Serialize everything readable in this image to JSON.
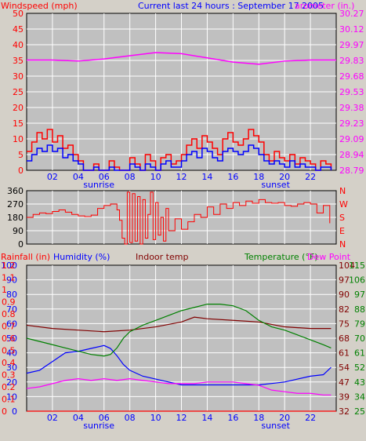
{
  "header": {
    "windspeed_label": "Windspeed (mph)",
    "title": "Current last 24 hours : September 17 2005",
    "barometer_label": "arometer (in.)"
  },
  "panel3_labels": {
    "rainfall": "Rainfall (in)",
    "humidity": "Humidity (%)",
    "indoor": "Indoor temp",
    "temperature": "Temperature (°F)",
    "dewpoint": "Dew Point"
  },
  "colors": {
    "bg": "#d4d0c8",
    "plot": "#c0c0c0",
    "grid": "#ffffff",
    "wind_gust": "#ff0000",
    "wind_avg": "#0000ff",
    "barometer": "#ff00ff",
    "direction": "#ff0000",
    "humidity": "#0000ff",
    "indoor": "#800000",
    "temperature": "#008000",
    "dewpoint": "#ff00ff",
    "rain": "#ff0000"
  },
  "chart_data": [
    {
      "type": "line",
      "id": "wind-barometer",
      "x_ticks": [
        "02",
        "04",
        "06",
        "08",
        "10",
        "12",
        "14",
        "16",
        "18",
        "20",
        "22"
      ],
      "x_markers": {
        "sunrise": "sunrise",
        "sunset": "sunset"
      },
      "xlim": [
        0,
        24
      ],
      "yleft": {
        "label": "Windspeed (mph)",
        "ticks": [
          0,
          5,
          10,
          15,
          20,
          25,
          30,
          35,
          40,
          45,
          50
        ],
        "lim": [
          0,
          50
        ]
      },
      "yright": {
        "label": "arometer (in.)",
        "ticks": [
          "28.79",
          "28.94",
          "29.09",
          "29.23",
          "29.38",
          "29.53",
          "29.68",
          "29.83",
          "29.97",
          "30.12",
          "30.27"
        ],
        "lim": [
          28.79,
          30.27
        ]
      },
      "series": [
        {
          "name": "Windspeed (mph)",
          "kind": "wind-gust",
          "x": [
            0.0,
            0.4,
            0.8,
            1.2,
            1.6,
            2.0,
            2.4,
            2.8,
            3.2,
            3.6,
            4.0,
            4.4,
            4.8,
            5.2,
            5.6,
            6.0,
            6.4,
            6.8,
            7.2,
            7.6,
            8.0,
            8.4,
            8.8,
            9.2,
            9.6,
            10.0,
            10.4,
            10.8,
            11.2,
            11.6,
            12.0,
            12.4,
            12.8,
            13.2,
            13.6,
            14.0,
            14.4,
            14.8,
            15.2,
            15.6,
            16.0,
            16.4,
            16.8,
            17.2,
            17.6,
            18.0,
            18.4,
            18.8,
            19.2,
            19.6,
            20.0,
            20.4,
            20.8,
            21.2,
            21.6,
            22.0,
            22.4,
            22.8,
            23.2,
            23.6
          ],
          "y": [
            6,
            9,
            12,
            10,
            13,
            9,
            11,
            7,
            8,
            5,
            3,
            0,
            0,
            2,
            0,
            0,
            3,
            1,
            0,
            0,
            4,
            2,
            0,
            5,
            3,
            0,
            4,
            5,
            2,
            3,
            5,
            8,
            10,
            7,
            11,
            9,
            7,
            5,
            10,
            12,
            9,
            8,
            10,
            13,
            11,
            9,
            5,
            3,
            6,
            4,
            3,
            5,
            2,
            4,
            3,
            2,
            0,
            3,
            2,
            0
          ]
        },
        {
          "name": "Windspeed avg",
          "kind": "wind-avg",
          "x": [
            0.0,
            0.4,
            0.8,
            1.2,
            1.6,
            2.0,
            2.4,
            2.8,
            3.2,
            3.6,
            4.0,
            4.4,
            4.8,
            5.2,
            5.6,
            6.0,
            6.4,
            6.8,
            7.2,
            7.6,
            8.0,
            8.4,
            8.8,
            9.2,
            9.6,
            10.0,
            10.4,
            10.8,
            11.2,
            11.6,
            12.0,
            12.4,
            12.8,
            13.2,
            13.6,
            14.0,
            14.4,
            14.8,
            15.2,
            15.6,
            16.0,
            16.4,
            16.8,
            17.2,
            17.6,
            18.0,
            18.4,
            18.8,
            19.2,
            19.6,
            20.0,
            20.4,
            20.8,
            21.2,
            21.6,
            22.0,
            22.4,
            22.8,
            23.2,
            23.6
          ],
          "y": [
            3,
            5,
            7,
            6,
            8,
            6,
            7,
            4,
            5,
            3,
            2,
            0,
            0,
            1,
            0,
            0,
            1,
            0,
            0,
            0,
            2,
            1,
            0,
            2,
            1,
            0,
            2,
            3,
            1,
            1,
            3,
            5,
            6,
            4,
            7,
            6,
            4,
            3,
            6,
            7,
            6,
            5,
            6,
            8,
            7,
            5,
            3,
            2,
            3,
            2,
            1,
            3,
            1,
            2,
            1,
            1,
            0,
            1,
            1,
            0
          ]
        },
        {
          "name": "arometer (in.)",
          "kind": "barometer",
          "axis": "right",
          "x": [
            0,
            2,
            4,
            6,
            8,
            10,
            12,
            14,
            16,
            18,
            20,
            22,
            24
          ],
          "y": [
            29.83,
            29.83,
            29.82,
            29.84,
            29.87,
            29.9,
            29.89,
            29.85,
            29.81,
            29.79,
            29.82,
            29.83,
            29.83
          ]
        }
      ]
    },
    {
      "type": "line",
      "id": "wind-direction",
      "x_ticks": [],
      "xlim": [
        0,
        24
      ],
      "yleft": {
        "ticks": [
          0,
          90,
          180,
          270,
          360
        ],
        "lim": [
          0,
          360
        ]
      },
      "yright": {
        "ticks": [
          "N",
          "E",
          "S",
          "W",
          "N"
        ]
      },
      "series": [
        {
          "name": "Wind direction",
          "kind": "direction",
          "x": [
            0.0,
            0.5,
            1.0,
            1.5,
            2.0,
            2.5,
            3.0,
            3.5,
            4.0,
            4.5,
            5.0,
            5.5,
            6.0,
            6.5,
            7.0,
            7.2,
            7.4,
            7.6,
            7.8,
            8.0,
            8.2,
            8.4,
            8.6,
            8.8,
            9.0,
            9.2,
            9.4,
            9.6,
            9.8,
            10.0,
            10.2,
            10.4,
            10.6,
            10.8,
            11.0,
            11.5,
            12.0,
            12.5,
            13.0,
            13.5,
            14.0,
            14.5,
            15.0,
            15.5,
            16.0,
            16.5,
            17.0,
            17.5,
            18.0,
            18.5,
            19.0,
            19.5,
            20.0,
            20.5,
            21.0,
            21.5,
            22.0,
            22.5,
            23.0,
            23.5
          ],
          "y": [
            180,
            200,
            210,
            205,
            220,
            230,
            215,
            200,
            190,
            185,
            195,
            240,
            260,
            270,
            230,
            160,
            40,
            0,
            350,
            10,
            340,
            20,
            320,
            0,
            300,
            40,
            200,
            350,
            30,
            280,
            60,
            180,
            20,
            240,
            90,
            170,
            100,
            150,
            200,
            180,
            250,
            200,
            270,
            240,
            280,
            260,
            290,
            275,
            300,
            280,
            275,
            280,
            260,
            255,
            270,
            280,
            270,
            210,
            260,
            140
          ]
        }
      ]
    },
    {
      "type": "line",
      "id": "temp-humidity",
      "x_ticks": [
        "02",
        "04",
        "06",
        "08",
        "10",
        "12",
        "14",
        "16",
        "18",
        "20",
        "22"
      ],
      "x_markers": {
        "sunrise": "sunrise",
        "sunset": "sunset"
      },
      "xlim": [
        0,
        24
      ],
      "axes": {
        "humidity": {
          "label": "Humidity (%)",
          "ticks": [
            0,
            10,
            20,
            30,
            40,
            50,
            60,
            70,
            80,
            90,
            100
          ],
          "lim": [
            0,
            100
          ]
        },
        "rainfall": {
          "label": "Rainfall (in)",
          "ticks": [
            "0",
            "0.1",
            "0.2",
            "0.3",
            "0.4",
            "0.5",
            "0.6",
            "0.7",
            "0.8",
            "0.9",
            "1",
            "1.1",
            "1.2"
          ],
          "lim": [
            0,
            1.2
          ]
        },
        "temp_a": {
          "ticks": [
            25,
            34,
            43,
            52,
            61,
            70,
            79,
            88,
            97,
            106,
            115
          ],
          "lim": [
            25,
            115
          ]
        },
        "temp_b": {
          "ticks": [
            32,
            39,
            47,
            54,
            61,
            68,
            75,
            82,
            90,
            97,
            104
          ],
          "lim": [
            32,
            104
          ]
        }
      },
      "series": [
        {
          "name": "Humidity (%)",
          "kind": "humidity",
          "x": [
            0,
            1,
            2,
            3,
            4,
            5,
            6,
            6.5,
            7,
            7.5,
            8,
            9,
            10,
            11,
            12,
            13,
            14,
            15,
            16,
            17,
            18,
            19,
            20,
            21,
            22,
            23,
            23.6
          ],
          "y": [
            26,
            28,
            34,
            40,
            41,
            43,
            45,
            43,
            38,
            32,
            28,
            24,
            22,
            20,
            18,
            18,
            18,
            18,
            18,
            18,
            18,
            19,
            20,
            22,
            24,
            25,
            30
          ]
        },
        {
          "name": "Indoor temp",
          "kind": "indoor",
          "x": [
            0,
            2,
            4,
            6,
            8,
            10,
            12,
            13,
            14,
            16,
            18,
            20,
            22,
            23.6
          ],
          "y": [
            78,
            76,
            75,
            74,
            75,
            77,
            80,
            83,
            82,
            81,
            80,
            77,
            76,
            76
          ]
        },
        {
          "name": "Temperature (°F)",
          "kind": "temperature",
          "x": [
            0,
            1,
            2,
            3,
            4,
            5,
            6,
            6.5,
            7,
            7.5,
            8,
            9,
            10,
            11,
            12,
            13,
            14,
            15,
            16,
            17,
            18,
            19,
            20,
            21,
            22,
            23,
            23.6
          ],
          "y": [
            70,
            68,
            66,
            64,
            62,
            60,
            59,
            60,
            64,
            70,
            74,
            78,
            81,
            84,
            87,
            89,
            91,
            91,
            90,
            87,
            81,
            77,
            75,
            72,
            69,
            66,
            64
          ]
        },
        {
          "name": "Dew Point",
          "kind": "dewpoint",
          "x": [
            0,
            1,
            2,
            3,
            4,
            5,
            6,
            7,
            8,
            9,
            10,
            11,
            12,
            13,
            14,
            15,
            16,
            17,
            18,
            19,
            20,
            21,
            22,
            23,
            23.6
          ],
          "y": [
            39,
            40,
            42,
            44,
            45,
            44,
            45,
            44,
            45,
            44,
            43,
            42,
            42,
            42,
            43,
            43,
            43,
            42,
            41,
            38,
            37,
            36,
            36,
            35,
            35
          ]
        },
        {
          "name": "Rainfall (in)",
          "kind": "rain",
          "x": [
            0,
            24
          ],
          "y": [
            0,
            0
          ]
        }
      ]
    }
  ]
}
